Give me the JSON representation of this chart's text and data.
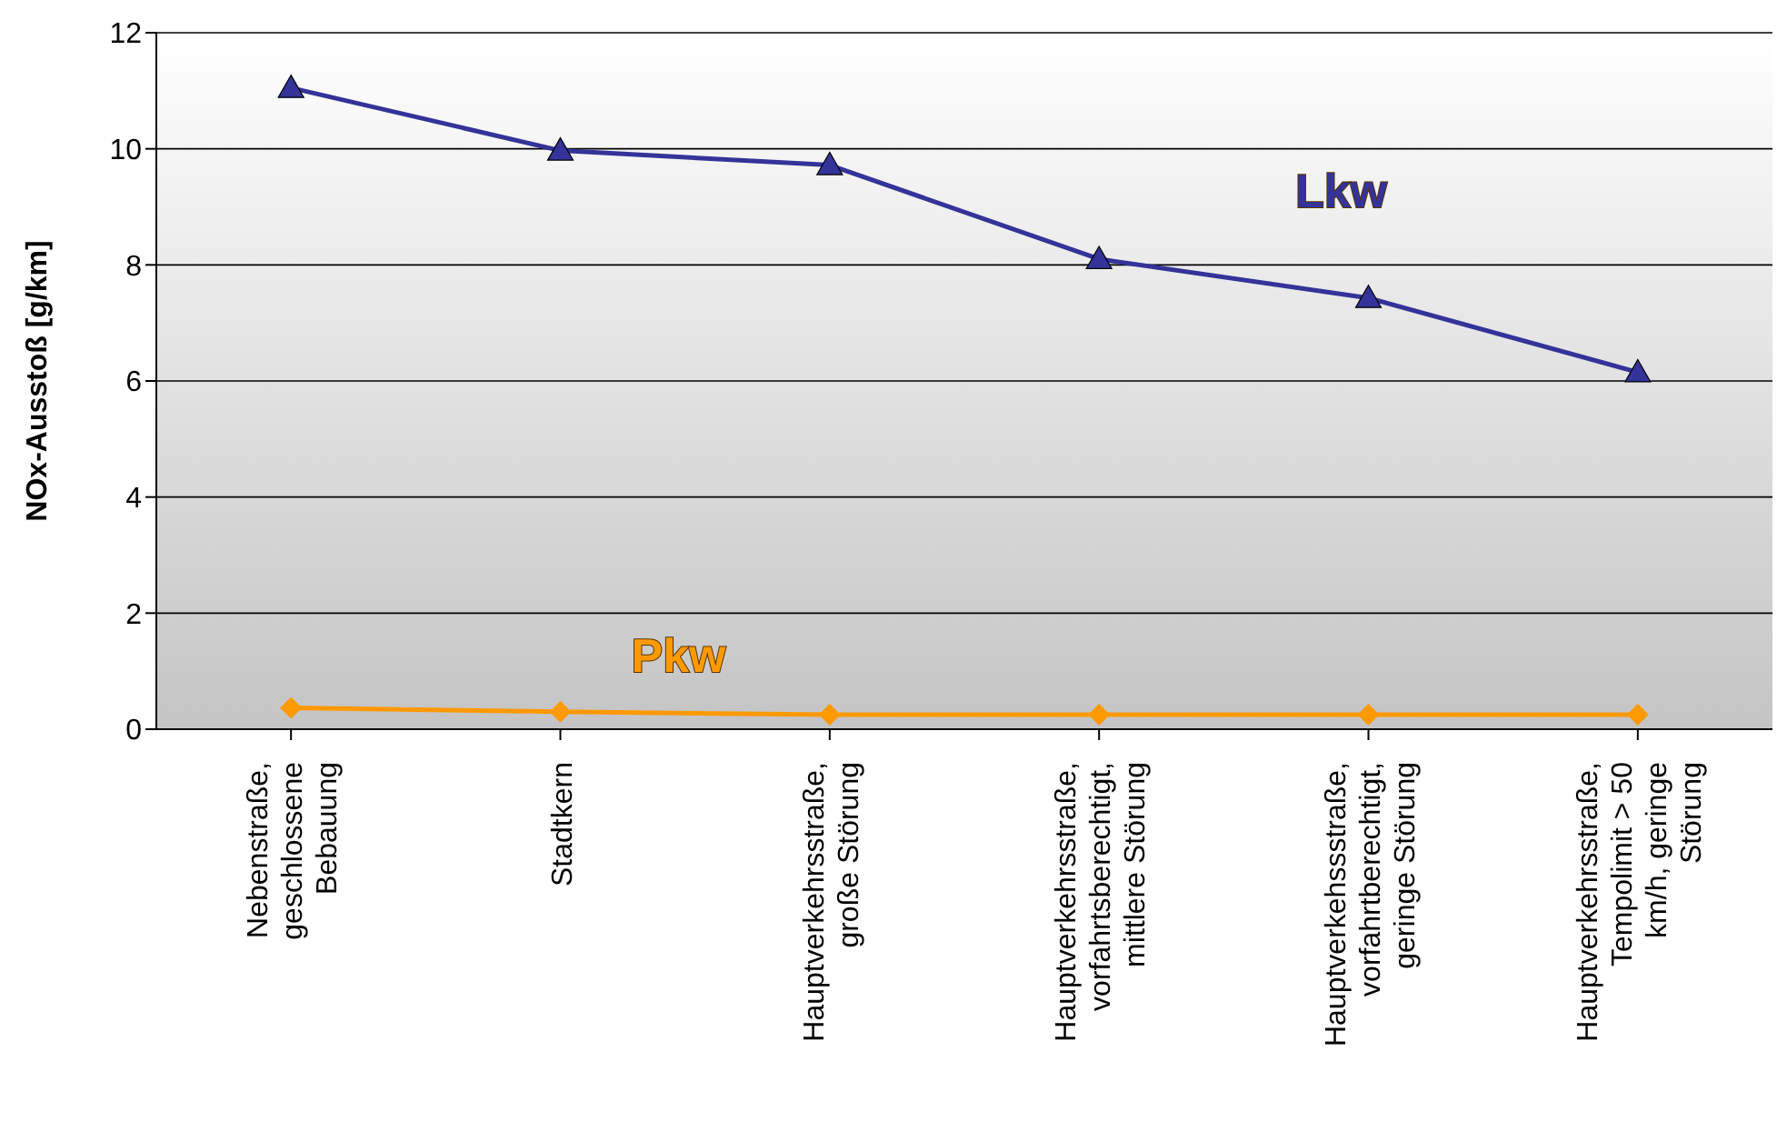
{
  "chart_data": {
    "type": "line",
    "ylabel": "NOx-Ausstoß [g/km]",
    "categories": [
      "Nebenstraße, geschlossene Bebauung",
      "Stadtkern",
      "Hauptverkehrsstraße, große Störung",
      "Hauptverkehrsstraße, vorfahrtsberechtigt, mittlere Störung",
      "Hauptverkehssstraße, vorfahrtberechtigt, geringe Störung",
      "Hauptverkehrsstraße, Tempolimit > 50 km/h, geringe Störung"
    ],
    "series": [
      {
        "name": "Lkw",
        "color": "#333399",
        "marker": "triangle",
        "values": [
          11.05,
          9.97,
          9.72,
          8.1,
          7.43,
          6.15
        ]
      },
      {
        "name": "Pkw",
        "color": "#ff9900",
        "marker": "diamond",
        "values": [
          0.37,
          0.3,
          0.25,
          0.25,
          0.25,
          0.25
        ]
      }
    ],
    "ylim": [
      0,
      12
    ],
    "yticks": [
      0,
      2,
      4,
      6,
      8,
      10,
      12
    ],
    "grid": "y",
    "legend": false,
    "line_style": "solid"
  }
}
